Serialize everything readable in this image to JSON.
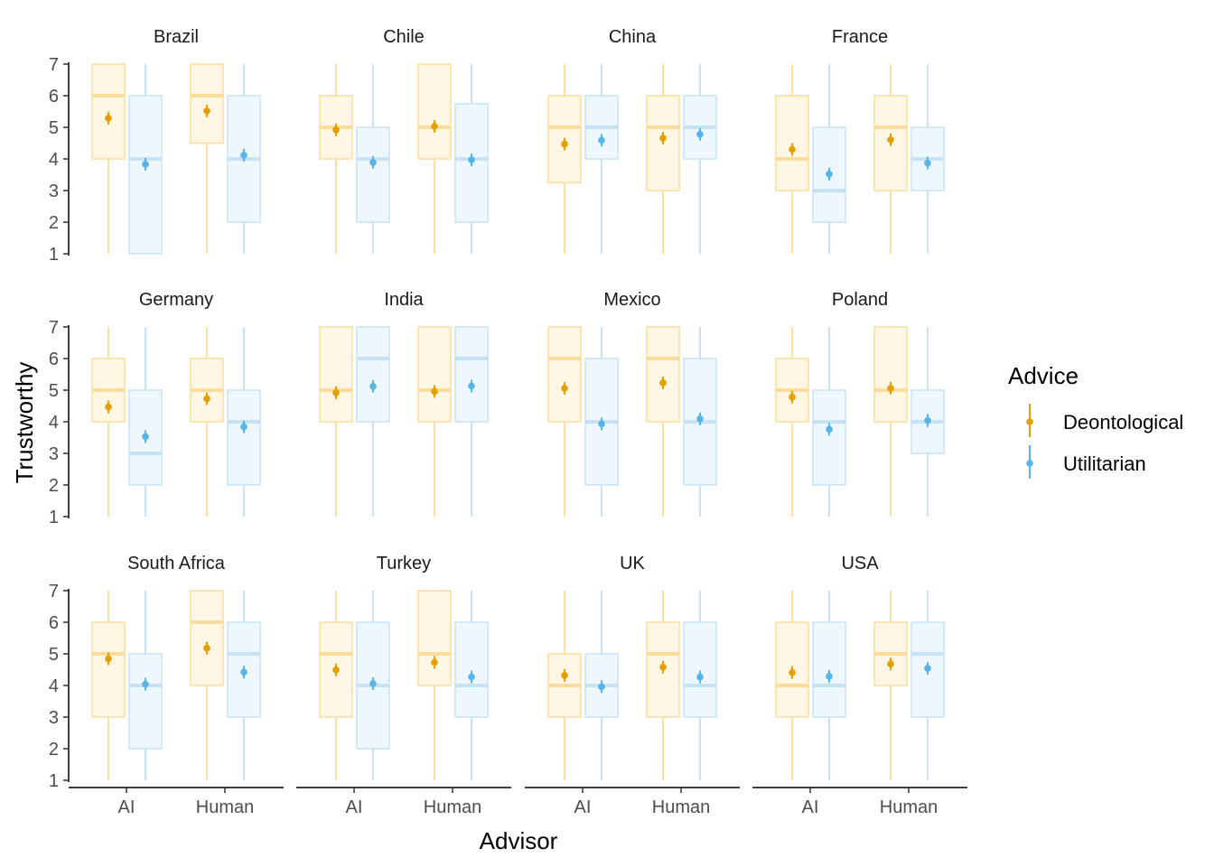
{
  "chart_data": {
    "type": "boxplot",
    "xlabel": "Advisor",
    "ylabel": "Trustworthy",
    "ylim": [
      1,
      7
    ],
    "yticks": [
      1,
      2,
      3,
      4,
      5,
      6,
      7
    ],
    "categories": [
      "AI",
      "Human"
    ],
    "legend": {
      "title": "Advice",
      "position": "right",
      "entries": [
        {
          "name": "Deontological",
          "color": "#E69F00",
          "box_fill": "#FFF6E3",
          "box_line": "#FCDE9E",
          "median_line": "#FDDC9A"
        },
        {
          "name": "Utilitarian",
          "color": "#56B4E9",
          "box_fill": "#EEF7FD",
          "box_line": "#C5E4F7",
          "median_line": "#C6E3F5"
        }
      ]
    },
    "grid": false,
    "panels": [
      {
        "name": "Brazil",
        "groups": [
          {
            "advisor": "AI",
            "advice": "Deontological",
            "min": 1,
            "q1": 4,
            "median": 6,
            "q3": 7,
            "max": 7,
            "mean": 5.29
          },
          {
            "advisor": "AI",
            "advice": "Utilitarian",
            "min": 1,
            "q1": 1,
            "median": 4,
            "q3": 6,
            "max": 7,
            "mean": 3.83
          },
          {
            "advisor": "Human",
            "advice": "Deontological",
            "min": 1,
            "q1": 4.5,
            "median": 6,
            "q3": 7,
            "max": 7,
            "mean": 5.52
          },
          {
            "advisor": "Human",
            "advice": "Utilitarian",
            "min": 1,
            "q1": 2,
            "median": 4,
            "q3": 6,
            "max": 7,
            "mean": 4.12
          }
        ]
      },
      {
        "name": "Chile",
        "groups": [
          {
            "advisor": "AI",
            "advice": "Deontological",
            "min": 1,
            "q1": 4,
            "median": 5,
            "q3": 6,
            "max": 7,
            "mean": 4.92
          },
          {
            "advisor": "AI",
            "advice": "Utilitarian",
            "min": 1,
            "q1": 2,
            "median": 4,
            "q3": 5,
            "max": 7,
            "mean": 3.89
          },
          {
            "advisor": "Human",
            "advice": "Deontological",
            "min": 1,
            "q1": 4,
            "median": 5,
            "q3": 7,
            "max": 7,
            "mean": 5.03
          },
          {
            "advisor": "Human",
            "advice": "Utilitarian",
            "min": 1,
            "q1": 2,
            "median": 4,
            "q3": 5.75,
            "max": 7,
            "mean": 3.97
          }
        ]
      },
      {
        "name": "China",
        "groups": [
          {
            "advisor": "AI",
            "advice": "Deontological",
            "min": 1,
            "q1": 3.25,
            "median": 5,
            "q3": 6,
            "max": 7,
            "mean": 4.47
          },
          {
            "advisor": "AI",
            "advice": "Utilitarian",
            "min": 1,
            "q1": 4,
            "median": 5,
            "q3": 6,
            "max": 7,
            "mean": 4.59
          },
          {
            "advisor": "Human",
            "advice": "Deontological",
            "min": 1,
            "q1": 3,
            "median": 5,
            "q3": 6,
            "max": 7,
            "mean": 4.66
          },
          {
            "advisor": "Human",
            "advice": "Utilitarian",
            "min": 1,
            "q1": 4,
            "median": 5,
            "q3": 6,
            "max": 7,
            "mean": 4.78
          }
        ]
      },
      {
        "name": "France",
        "groups": [
          {
            "advisor": "AI",
            "advice": "Deontological",
            "min": 1,
            "q1": 3,
            "median": 4,
            "q3": 6,
            "max": 7,
            "mean": 4.3
          },
          {
            "advisor": "AI",
            "advice": "Utilitarian",
            "min": 1,
            "q1": 2,
            "median": 3,
            "q3": 5,
            "max": 7,
            "mean": 3.52
          },
          {
            "advisor": "Human",
            "advice": "Deontological",
            "min": 1,
            "q1": 3,
            "median": 5,
            "q3": 6,
            "max": 7,
            "mean": 4.61
          },
          {
            "advisor": "Human",
            "advice": "Utilitarian",
            "min": 1,
            "q1": 3,
            "median": 4,
            "q3": 5,
            "max": 7,
            "mean": 3.87
          }
        ]
      },
      {
        "name": "Germany",
        "groups": [
          {
            "advisor": "AI",
            "advice": "Deontological",
            "min": 1,
            "q1": 4,
            "median": 5,
            "q3": 6,
            "max": 7,
            "mean": 4.47
          },
          {
            "advisor": "AI",
            "advice": "Utilitarian",
            "min": 1,
            "q1": 2,
            "median": 3,
            "q3": 5,
            "max": 7,
            "mean": 3.53
          },
          {
            "advisor": "Human",
            "advice": "Deontological",
            "min": 1,
            "q1": 4,
            "median": 5,
            "q3": 6,
            "max": 7,
            "mean": 4.73
          },
          {
            "advisor": "Human",
            "advice": "Utilitarian",
            "min": 1,
            "q1": 2,
            "median": 4,
            "q3": 5,
            "max": 7,
            "mean": 3.84
          }
        ]
      },
      {
        "name": "India",
        "groups": [
          {
            "advisor": "AI",
            "advice": "Deontological",
            "min": 1,
            "q1": 4,
            "median": 5,
            "q3": 7,
            "max": 7,
            "mean": 4.92
          },
          {
            "advisor": "AI",
            "advice": "Utilitarian",
            "min": 1,
            "q1": 4,
            "median": 6,
            "q3": 7,
            "max": 7,
            "mean": 5.12
          },
          {
            "advisor": "Human",
            "advice": "Deontological",
            "min": 1,
            "q1": 4,
            "median": 5,
            "q3": 7,
            "max": 7,
            "mean": 4.96
          },
          {
            "advisor": "Human",
            "advice": "Utilitarian",
            "min": 1,
            "q1": 4,
            "median": 6,
            "q3": 7,
            "max": 7,
            "mean": 5.13
          }
        ]
      },
      {
        "name": "Mexico",
        "groups": [
          {
            "advisor": "AI",
            "advice": "Deontological",
            "min": 1,
            "q1": 4,
            "median": 6,
            "q3": 7,
            "max": 7,
            "mean": 5.06
          },
          {
            "advisor": "AI",
            "advice": "Utilitarian",
            "min": 1,
            "q1": 2,
            "median": 4,
            "q3": 6,
            "max": 7,
            "mean": 3.93
          },
          {
            "advisor": "Human",
            "advice": "Deontological",
            "min": 1,
            "q1": 4,
            "median": 6,
            "q3": 7,
            "max": 7,
            "mean": 5.23
          },
          {
            "advisor": "Human",
            "advice": "Utilitarian",
            "min": 1,
            "q1": 2,
            "median": 4,
            "q3": 6,
            "max": 7,
            "mean": 4.09
          }
        ]
      },
      {
        "name": "Poland",
        "groups": [
          {
            "advisor": "AI",
            "advice": "Deontological",
            "min": 1,
            "q1": 4,
            "median": 5,
            "q3": 6,
            "max": 7,
            "mean": 4.78
          },
          {
            "advisor": "AI",
            "advice": "Utilitarian",
            "min": 1,
            "q1": 2,
            "median": 4,
            "q3": 5,
            "max": 7,
            "mean": 3.76
          },
          {
            "advisor": "Human",
            "advice": "Deontological",
            "min": 1,
            "q1": 4,
            "median": 5,
            "q3": 7,
            "max": 7,
            "mean": 5.06
          },
          {
            "advisor": "Human",
            "advice": "Utilitarian",
            "min": 1,
            "q1": 3,
            "median": 4,
            "q3": 5,
            "max": 7,
            "mean": 4.04
          }
        ]
      },
      {
        "name": "South Africa",
        "groups": [
          {
            "advisor": "AI",
            "advice": "Deontological",
            "min": 1,
            "q1": 3,
            "median": 5,
            "q3": 6,
            "max": 7,
            "mean": 4.84
          },
          {
            "advisor": "AI",
            "advice": "Utilitarian",
            "min": 1,
            "q1": 2,
            "median": 4,
            "q3": 5,
            "max": 7,
            "mean": 4.04
          },
          {
            "advisor": "Human",
            "advice": "Deontological",
            "min": 1,
            "q1": 4,
            "median": 6,
            "q3": 7,
            "max": 7,
            "mean": 5.18
          },
          {
            "advisor": "Human",
            "advice": "Utilitarian",
            "min": 1,
            "q1": 3,
            "median": 5,
            "q3": 6,
            "max": 7,
            "mean": 4.42
          }
        ]
      },
      {
        "name": "Turkey",
        "groups": [
          {
            "advisor": "AI",
            "advice": "Deontological",
            "min": 1,
            "q1": 3,
            "median": 5,
            "q3": 6,
            "max": 7,
            "mean": 4.49
          },
          {
            "advisor": "AI",
            "advice": "Utilitarian",
            "min": 1,
            "q1": 2,
            "median": 4,
            "q3": 6,
            "max": 7,
            "mean": 4.06
          },
          {
            "advisor": "Human",
            "advice": "Deontological",
            "min": 1,
            "q1": 4,
            "median": 5,
            "q3": 7,
            "max": 7,
            "mean": 4.73
          },
          {
            "advisor": "Human",
            "advice": "Utilitarian",
            "min": 1,
            "q1": 3,
            "median": 4,
            "q3": 6,
            "max": 7,
            "mean": 4.27
          }
        ]
      },
      {
        "name": "UK",
        "groups": [
          {
            "advisor": "AI",
            "advice": "Deontological",
            "min": 1,
            "q1": 3,
            "median": 4,
            "q3": 5,
            "max": 7,
            "mean": 4.32
          },
          {
            "advisor": "AI",
            "advice": "Utilitarian",
            "min": 1,
            "q1": 3,
            "median": 4,
            "q3": 5,
            "max": 7,
            "mean": 3.96
          },
          {
            "advisor": "Human",
            "advice": "Deontological",
            "min": 1,
            "q1": 3,
            "median": 5,
            "q3": 6,
            "max": 7,
            "mean": 4.58
          },
          {
            "advisor": "Human",
            "advice": "Utilitarian",
            "min": 1,
            "q1": 3,
            "median": 4,
            "q3": 6,
            "max": 7,
            "mean": 4.27
          }
        ]
      },
      {
        "name": "USA",
        "groups": [
          {
            "advisor": "AI",
            "advice": "Deontological",
            "min": 1,
            "q1": 3,
            "median": 4,
            "q3": 6,
            "max": 7,
            "mean": 4.41
          },
          {
            "advisor": "AI",
            "advice": "Utilitarian",
            "min": 1,
            "q1": 3,
            "median": 4,
            "q3": 6,
            "max": 7,
            "mean": 4.29
          },
          {
            "advisor": "Human",
            "advice": "Deontological",
            "min": 1,
            "q1": 4,
            "median": 5,
            "q3": 6,
            "max": 7,
            "mean": 4.68
          },
          {
            "advisor": "Human",
            "advice": "Utilitarian",
            "min": 1,
            "q1": 3,
            "median": 5,
            "q3": 6,
            "max": 7,
            "mean": 4.54
          }
        ]
      }
    ]
  }
}
